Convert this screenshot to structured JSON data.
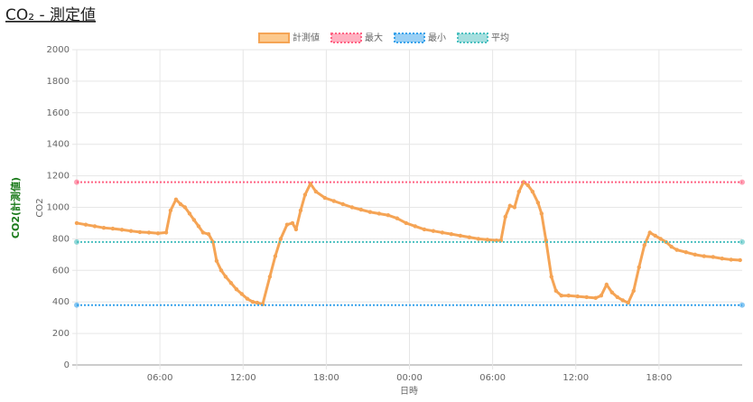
{
  "chart_data": {
    "type": "line",
    "title": "CO₂ - 測定値",
    "side_label": "CO2(計測値)",
    "ylabel": "CO2",
    "xlabel": "日時",
    "xlim": [
      0,
      48
    ],
    "xticks": [
      {
        "value": 6,
        "label": "06:00"
      },
      {
        "value": 12,
        "label": "12:00"
      },
      {
        "value": 18,
        "label": "18:00"
      },
      {
        "value": 24,
        "label": "00:00"
      },
      {
        "value": 30,
        "label": "06:00"
      },
      {
        "value": 36,
        "label": "12:00"
      },
      {
        "value": 42,
        "label": "18:00"
      }
    ],
    "ylim": [
      0,
      2000
    ],
    "yticks": [
      0,
      200,
      400,
      600,
      800,
      1000,
      1200,
      1400,
      1600,
      1800,
      2000
    ],
    "grid": true,
    "x": [
      0,
      0.65,
      1.3,
      1.95,
      2.6,
      3.26,
      3.91,
      4.56,
      5.21,
      5.86,
      6.45,
      6.77,
      7.16,
      7.49,
      7.81,
      8.14,
      8.46,
      8.79,
      9.11,
      9.51,
      9.83,
      10.09,
      10.42,
      10.74,
      11.13,
      11.52,
      11.91,
      12.3,
      12.7,
      13.02,
      13.41,
      13.93,
      14.32,
      14.71,
      15.17,
      15.56,
      15.82,
      16.15,
      16.47,
      16.86,
      17.25,
      17.9,
      18.55,
      19.2,
      19.86,
      20.51,
      21.16,
      21.81,
      22.46,
      23.11,
      23.76,
      24.41,
      25.07,
      25.72,
      26.37,
      27.02,
      27.67,
      28.32,
      28.97,
      29.62,
      30.27,
      30.6,
      30.92,
      31.25,
      31.58,
      31.9,
      32.23,
      32.55,
      32.88,
      33.27,
      33.53,
      33.85,
      34.24,
      34.57,
      34.96,
      35.48,
      36.13,
      36.78,
      37.43,
      37.83,
      38.22,
      38.61,
      39.0,
      39.39,
      39.78,
      40.17,
      40.56,
      40.95,
      41.34,
      41.73,
      42.12,
      42.51,
      42.9,
      43.29,
      43.95,
      44.6,
      45.25,
      45.9,
      46.55,
      47.2,
      47.85
    ],
    "series": [
      {
        "name": "計測値",
        "color": "#f5a455",
        "fill": "#fcc98d",
        "values": [
          900,
          890,
          880,
          870,
          865,
          858,
          850,
          843,
          840,
          835,
          840,
          980,
          1050,
          1020,
          1000,
          960,
          920,
          880,
          840,
          830,
          780,
          660,
          600,
          560,
          520,
          480,
          450,
          420,
          400,
          395,
          385,
          560,
          690,
          800,
          890,
          900,
          860,
          980,
          1080,
          1150,
          1100,
          1060,
          1040,
          1020,
          1000,
          985,
          970,
          960,
          950,
          930,
          900,
          880,
          860,
          850,
          840,
          830,
          820,
          810,
          800,
          795,
          790,
          790,
          940,
          1010,
          1000,
          1100,
          1160,
          1140,
          1100,
          1030,
          960,
          790,
          560,
          470,
          440,
          440,
          435,
          430,
          425,
          440,
          510,
          460,
          430,
          410,
          395,
          470,
          620,
          760,
          840,
          820,
          800,
          780,
          750,
          730,
          715,
          700,
          690,
          685,
          675,
          668,
          665
        ]
      },
      {
        "name": "最大",
        "color": "#ff6384",
        "fill": "#ffb1c1",
        "x": [
          0,
          48
        ],
        "values": [
          1160,
          1160
        ]
      },
      {
        "name": "最小",
        "color": "#36a2eb",
        "fill": "#9ad0f5",
        "x": [
          0,
          48
        ],
        "values": [
          380,
          380
        ]
      },
      {
        "name": "平均",
        "color": "#4bc0c0",
        "fill": "#a5dfdf",
        "x": [
          0,
          48
        ],
        "values": [
          780,
          780
        ]
      }
    ]
  }
}
